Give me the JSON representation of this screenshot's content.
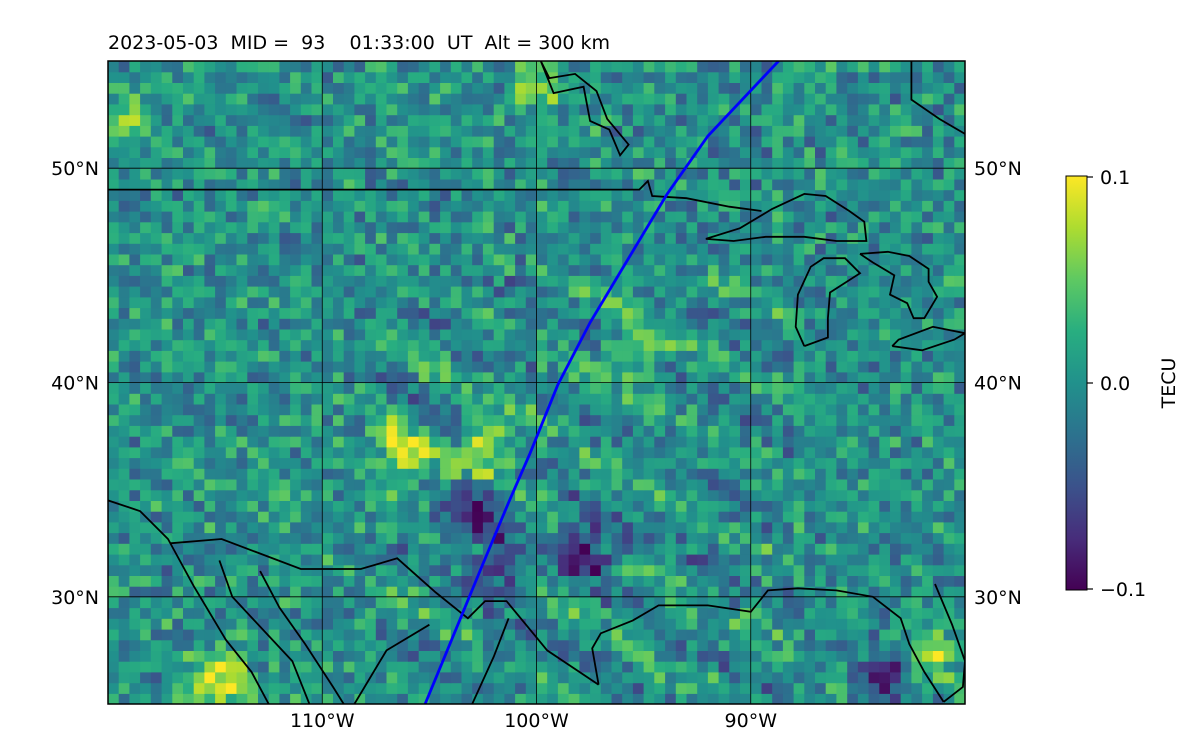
{
  "title": "2023-05-03  MID =  93    01:33:00  UT  Alt = 300 km",
  "map": {
    "lon_range": [
      -120,
      -80
    ],
    "lat_range": [
      25,
      55
    ],
    "gridlines": {
      "lon": [
        -110,
        -100,
        -90
      ],
      "lat": [
        30,
        40,
        50
      ]
    },
    "lat_labels": [
      "30°N",
      "40°N",
      "50°N"
    ],
    "lon_labels": [
      "110°W",
      "100°W",
      "90°W"
    ]
  },
  "colorbar": {
    "label": "TECU",
    "min": -0.1,
    "max": 0.1,
    "tick_labels": [
      "0.1",
      "0.0",
      "−0.1"
    ],
    "colormap": "viridis"
  },
  "overlay_track": {
    "color": "#0000ff",
    "points": [
      [
        -105.2,
        25
      ],
      [
        -104.0,
        27.9
      ],
      [
        -102.6,
        31.3
      ],
      [
        -101.3,
        34.4
      ],
      [
        -100.3,
        36.7
      ],
      [
        -99.0,
        39.9
      ],
      [
        -97.5,
        42.8
      ],
      [
        -96.0,
        45.3
      ],
      [
        -93.9,
        48.8
      ],
      [
        -92.0,
        51.5
      ],
      [
        -88.7,
        55
      ]
    ]
  },
  "anomaly_hotspots": [
    {
      "lon": -115.0,
      "lat": 26.0,
      "value": 0.1
    },
    {
      "lon": -106.5,
      "lat": 36.5,
      "value": 0.09
    },
    {
      "lon": -102.5,
      "lat": 36.5,
      "value": 0.09
    },
    {
      "lon": -95.5,
      "lat": 41.2,
      "value": 0.07
    },
    {
      "lon": -100.0,
      "lat": 53.5,
      "value": 0.06
    },
    {
      "lon": -119.5,
      "lat": 52.0,
      "value": 0.05
    },
    {
      "lon": -82.0,
      "lat": 27.0,
      "value": 0.08
    },
    {
      "lon": -98.0,
      "lat": 32.0,
      "value": -0.1
    },
    {
      "lon": -103.0,
      "lat": 34.0,
      "value": -0.08
    },
    {
      "lon": -102.0,
      "lat": 31.0,
      "value": -0.07
    },
    {
      "lon": -84.0,
      "lat": 26.0,
      "value": -0.09
    }
  ]
}
